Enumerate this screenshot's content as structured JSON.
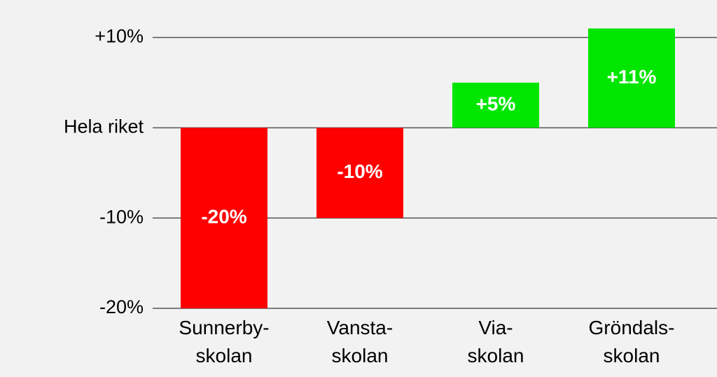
{
  "chart_data": {
    "type": "bar",
    "categories": [
      "Sunnerby-\nskolan",
      "Vansta-\nskolan",
      "Via-\nskolan",
      "Gröndals-\nskolan"
    ],
    "values": [
      -20,
      -10,
      5,
      11
    ],
    "value_labels": [
      "-20%",
      "-10%",
      "+5%",
      "+11%"
    ],
    "colors": [
      "#ff0000",
      "#ff0000",
      "#00e600",
      "#00e600"
    ],
    "ylim": [
      -20,
      14
    ],
    "yticks": [
      {
        "value": 10,
        "label": "+10%"
      },
      {
        "value": 0,
        "label": "Hela riket"
      },
      {
        "value": -10,
        "label": "-10%"
      },
      {
        "value": -20,
        "label": "-20%"
      }
    ],
    "grid": true
  }
}
